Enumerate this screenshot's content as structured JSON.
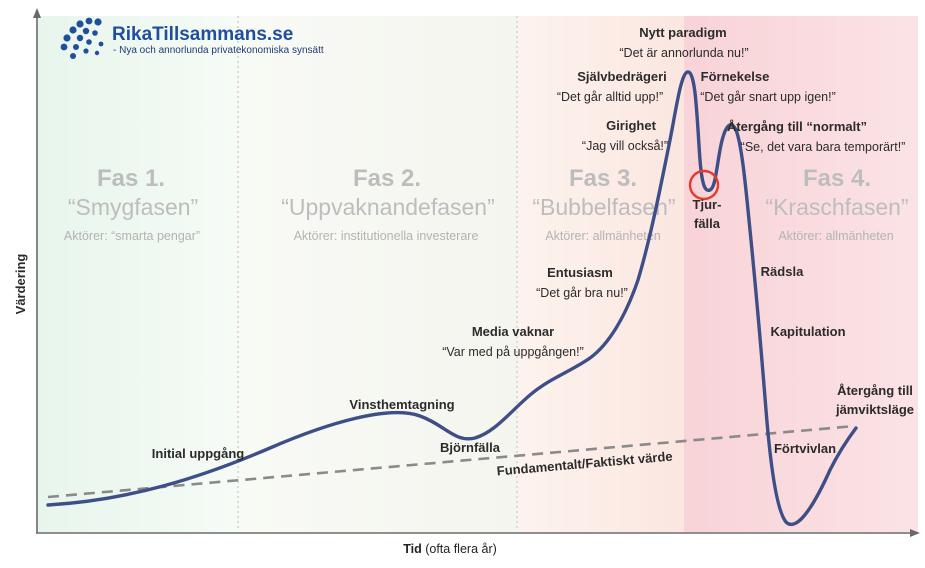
{
  "logo": {
    "title": "RikaTillsammans.se",
    "subtitle": "- Nya och annorlunda privatekonomiska synsätt",
    "color": "#1f4f9c"
  },
  "axes": {
    "y_label": "Värdering",
    "x_label_bold": "Tid",
    "x_label_rest": " (ofta flera år)"
  },
  "phases": [
    {
      "number": "Fas 1.",
      "name": "“Smygfasen”",
      "actors": "Aktörer: “smarta pengar”",
      "tint": "#eaf6ef"
    },
    {
      "number": "Fas 2.",
      "name": "“Uppvaknandefasen”",
      "actors": "Aktörer: institutionella investerare",
      "tint": "#f6f7f2"
    },
    {
      "number": "Fas 3.",
      "name": "“Bubbelfasen”",
      "actors": "Aktörer: allmänheten",
      "tint": "#fbece6"
    },
    {
      "number": "Fas 4.",
      "name": "“Kraschfasen”",
      "actors": "Aktörer: allmänheten",
      "tint": "#f9d8dc"
    }
  ],
  "labels": {
    "initial": {
      "title": "Initial uppgång"
    },
    "profit": {
      "title": "Vinsthemtagning"
    },
    "bear_trap": {
      "title": "Björnfälla"
    },
    "fundamental": {
      "title": "Fundamentalt/Faktiskt värde"
    },
    "media": {
      "title": "Media vaknar",
      "quote": "“Var med på uppgången!”"
    },
    "enthusiasm": {
      "title": "Entusiasm",
      "quote": "“Det går bra nu!”"
    },
    "greed": {
      "title": "Girighet",
      "quote": "“Jag vill också!”"
    },
    "delusion": {
      "title": "Självbedrägeri",
      "quote": "“Det går alltid upp!”"
    },
    "new_paradigm": {
      "title": "Nytt paradigm",
      "quote": "“Det är annorlunda nu!”"
    },
    "denial": {
      "title": "Förnekelse",
      "quote": "“Det går snart upp igen!”"
    },
    "return_normal": {
      "title": "Återgång till “normalt”",
      "quote": "“Se, det vara bara temporärt!”"
    },
    "bull_trap": {
      "line1": "Tjur-",
      "line2": "fälla"
    },
    "fear": {
      "title": "Rädsla"
    },
    "capitulation": {
      "title": "Kapitulation"
    },
    "despair": {
      "title": "Förtvivlan"
    },
    "equilibrium": {
      "line1": "Återgång till",
      "line2": "jämviktsläge"
    }
  },
  "colors": {
    "curve": "#3d4f86",
    "dashed": "#8a8a8a",
    "circle": "#e53b2c",
    "text": "#2b2b2b",
    "phase_text": "#bdbdbd"
  }
}
